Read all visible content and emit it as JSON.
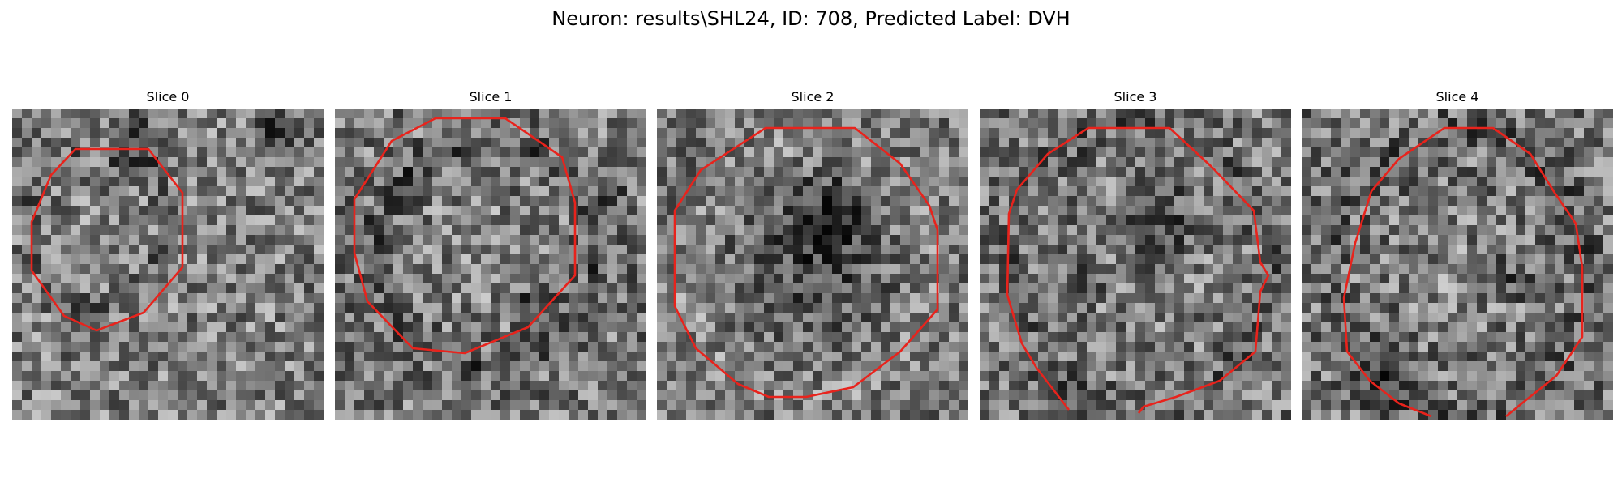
{
  "title": "Neuron: results\\SHL24, ID: 708, Predicted Label: DVH",
  "panels": [
    {
      "label": "Slice 0"
    },
    {
      "label": "Slice 1"
    },
    {
      "label": "Slice 2"
    },
    {
      "label": "Slice 3"
    },
    {
      "label": "Slice 4"
    }
  ],
  "image_grid_cells": 32,
  "colors": {
    "contour": "#e8231c",
    "colormap": "grayscale"
  }
}
